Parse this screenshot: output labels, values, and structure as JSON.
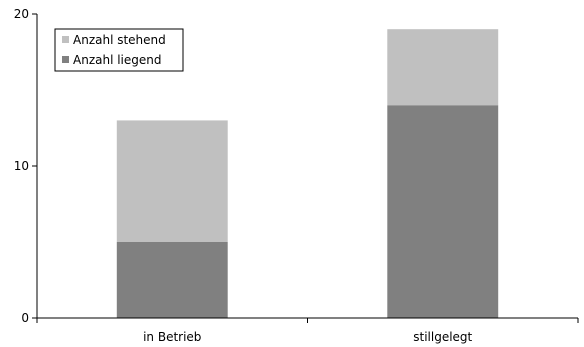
{
  "chart_data": {
    "type": "bar",
    "stacked": true,
    "categories": [
      "in Betrieb",
      "stillgelegt"
    ],
    "series": [
      {
        "name": "Anzahl liegend",
        "values": [
          5,
          14
        ],
        "color": "#808080"
      },
      {
        "name": "Anzahl stehend",
        "values": [
          8,
          5
        ],
        "color": "#c0c0c0"
      }
    ],
    "legend_order": [
      1,
      0
    ],
    "ylim": [
      0,
      20
    ],
    "yticks": [
      0,
      10,
      20
    ],
    "ytick_labels": [
      "0",
      "10",
      "20"
    ],
    "grid": false,
    "legend_position": "top-left",
    "title": "",
    "xlabel": "",
    "ylabel": ""
  }
}
